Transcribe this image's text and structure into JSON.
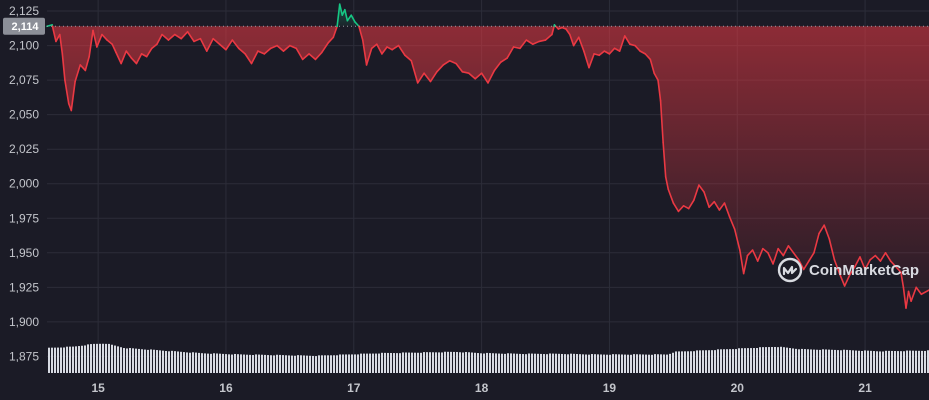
{
  "brand": {
    "watermark": "CoinMarketCap",
    "logo_icon": "coinmarketcap-logo-icon"
  },
  "colors": {
    "background": "#1b1b26",
    "up": "#16c784",
    "down": "#ea3943",
    "volume": "#d8dbe3",
    "grid": "#2c2d39",
    "price_tag_bg": "#8c8f98"
  },
  "chart_data": {
    "type": "line",
    "title": "",
    "xlabel": "",
    "ylabel": "",
    "ylim": [
      1863,
      2133
    ],
    "xlim": [
      14.6,
      21.5
    ],
    "y_ticks": [
      "1,875",
      "1,900",
      "1,925",
      "1,950",
      "1,975",
      "2,000",
      "2,025",
      "2,050",
      "2,075",
      "2,100",
      "2,125"
    ],
    "x_ticks": [
      "15",
      "16",
      "17",
      "18",
      "19",
      "20",
      "21"
    ],
    "grid": true,
    "reference_price": 2114,
    "current_price_label": "2,114",
    "series": [
      {
        "points": [
          [
            14.6,
            2114
          ],
          [
            14.64,
            2115
          ],
          [
            14.67,
            2103
          ],
          [
            14.7,
            2108
          ],
          [
            14.72,
            2094
          ],
          [
            14.74,
            2075
          ],
          [
            14.77,
            2058
          ],
          [
            14.79,
            2053
          ],
          [
            14.82,
            2074
          ],
          [
            14.86,
            2086
          ],
          [
            14.9,
            2082
          ],
          [
            14.93,
            2092
          ],
          [
            14.96,
            2111
          ],
          [
            14.99,
            2099
          ],
          [
            15.03,
            2108
          ],
          [
            15.07,
            2104
          ],
          [
            15.11,
            2101
          ],
          [
            15.14,
            2095
          ],
          [
            15.18,
            2087
          ],
          [
            15.22,
            2096
          ],
          [
            15.26,
            2091
          ],
          [
            15.3,
            2087
          ],
          [
            15.34,
            2094
          ],
          [
            15.38,
            2092
          ],
          [
            15.42,
            2098
          ],
          [
            15.46,
            2101
          ],
          [
            15.5,
            2108
          ],
          [
            15.55,
            2104
          ],
          [
            15.6,
            2108
          ],
          [
            15.65,
            2105
          ],
          [
            15.7,
            2110
          ],
          [
            15.75,
            2103
          ],
          [
            15.8,
            2105
          ],
          [
            15.85,
            2096
          ],
          [
            15.9,
            2105
          ],
          [
            15.95,
            2101
          ],
          [
            16.0,
            2097
          ],
          [
            16.05,
            2104
          ],
          [
            16.1,
            2098
          ],
          [
            16.15,
            2094
          ],
          [
            16.2,
            2087
          ],
          [
            16.25,
            2096
          ],
          [
            16.3,
            2094
          ],
          [
            16.35,
            2098
          ],
          [
            16.4,
            2100
          ],
          [
            16.45,
            2096
          ],
          [
            16.5,
            2100
          ],
          [
            16.55,
            2098
          ],
          [
            16.6,
            2090
          ],
          [
            16.65,
            2094
          ],
          [
            16.7,
            2090
          ],
          [
            16.75,
            2095
          ],
          [
            16.8,
            2102
          ],
          [
            16.84,
            2106
          ],
          [
            16.87,
            2114
          ],
          [
            16.89,
            2130
          ],
          [
            16.91,
            2122
          ],
          [
            16.93,
            2126
          ],
          [
            16.95,
            2118
          ],
          [
            16.98,
            2122
          ],
          [
            17.01,
            2117
          ],
          [
            17.04,
            2114
          ],
          [
            17.07,
            2104
          ],
          [
            17.1,
            2086
          ],
          [
            17.14,
            2098
          ],
          [
            17.18,
            2101
          ],
          [
            17.22,
            2094
          ],
          [
            17.26,
            2099
          ],
          [
            17.3,
            2097
          ],
          [
            17.35,
            2100
          ],
          [
            17.4,
            2093
          ],
          [
            17.45,
            2089
          ],
          [
            17.5,
            2073
          ],
          [
            17.55,
            2080
          ],
          [
            17.6,
            2074
          ],
          [
            17.65,
            2081
          ],
          [
            17.7,
            2086
          ],
          [
            17.75,
            2089
          ],
          [
            17.8,
            2087
          ],
          [
            17.85,
            2081
          ],
          [
            17.9,
            2080
          ],
          [
            17.95,
            2076
          ],
          [
            18.0,
            2080
          ],
          [
            18.05,
            2073
          ],
          [
            18.1,
            2082
          ],
          [
            18.15,
            2088
          ],
          [
            18.2,
            2091
          ],
          [
            18.25,
            2099
          ],
          [
            18.3,
            2098
          ],
          [
            18.35,
            2104
          ],
          [
            18.4,
            2101
          ],
          [
            18.45,
            2103
          ],
          [
            18.5,
            2104
          ],
          [
            18.55,
            2108
          ],
          [
            18.57,
            2115
          ],
          [
            18.6,
            2112
          ],
          [
            18.63,
            2113
          ],
          [
            18.66,
            2112
          ],
          [
            18.69,
            2108
          ],
          [
            18.72,
            2100
          ],
          [
            18.76,
            2106
          ],
          [
            18.8,
            2096
          ],
          [
            18.84,
            2084
          ],
          [
            18.88,
            2094
          ],
          [
            18.92,
            2093
          ],
          [
            18.96,
            2096
          ],
          [
            19.0,
            2094
          ],
          [
            19.04,
            2098
          ],
          [
            19.08,
            2096
          ],
          [
            19.12,
            2107
          ],
          [
            19.16,
            2101
          ],
          [
            19.2,
            2100
          ],
          [
            19.24,
            2096
          ],
          [
            19.28,
            2094
          ],
          [
            19.32,
            2090
          ],
          [
            19.35,
            2080
          ],
          [
            19.38,
            2075
          ],
          [
            19.4,
            2060
          ],
          [
            19.42,
            2030
          ],
          [
            19.44,
            2005
          ],
          [
            19.46,
            1996
          ],
          [
            19.5,
            1986
          ],
          [
            19.54,
            1980
          ],
          [
            19.58,
            1984
          ],
          [
            19.62,
            1982
          ],
          [
            19.66,
            1988
          ],
          [
            19.7,
            1999
          ],
          [
            19.74,
            1994
          ],
          [
            19.78,
            1983
          ],
          [
            19.82,
            1987
          ],
          [
            19.86,
            1981
          ],
          [
            19.9,
            1986
          ],
          [
            19.94,
            1976
          ],
          [
            19.98,
            1967
          ],
          [
            20.02,
            1952
          ],
          [
            20.05,
            1935
          ],
          [
            20.08,
            1948
          ],
          [
            20.12,
            1952
          ],
          [
            20.16,
            1944
          ],
          [
            20.2,
            1953
          ],
          [
            20.24,
            1950
          ],
          [
            20.28,
            1942
          ],
          [
            20.32,
            1953
          ],
          [
            20.36,
            1948
          ],
          [
            20.4,
            1955
          ],
          [
            20.44,
            1950
          ],
          [
            20.48,
            1945
          ],
          [
            20.52,
            1938
          ],
          [
            20.56,
            1944
          ],
          [
            20.6,
            1950
          ],
          [
            20.64,
            1964
          ],
          [
            20.68,
            1970
          ],
          [
            20.72,
            1960
          ],
          [
            20.76,
            1945
          ],
          [
            20.8,
            1935
          ],
          [
            20.84,
            1926
          ],
          [
            20.88,
            1934
          ],
          [
            20.92,
            1940
          ],
          [
            20.96,
            1947
          ],
          [
            21.0,
            1938
          ],
          [
            21.04,
            1945
          ],
          [
            21.08,
            1948
          ],
          [
            21.12,
            1944
          ],
          [
            21.16,
            1950
          ],
          [
            21.2,
            1944
          ],
          [
            21.24,
            1940
          ],
          [
            21.28,
            1936
          ],
          [
            21.3,
            1925
          ],
          [
            21.32,
            1910
          ],
          [
            21.34,
            1922
          ],
          [
            21.36,
            1915
          ],
          [
            21.4,
            1925
          ],
          [
            21.44,
            1920
          ],
          [
            21.5,
            1923
          ]
        ]
      }
    ],
    "volume": {
      "x_start": 14.6,
      "x_end": 21.5,
      "relative_levels": [
        [
          14.6,
          0.38
        ],
        [
          14.8,
          0.4
        ],
        [
          14.95,
          0.44
        ],
        [
          15.05,
          0.45
        ],
        [
          15.2,
          0.38
        ],
        [
          15.5,
          0.34
        ],
        [
          15.8,
          0.3
        ],
        [
          16.1,
          0.28
        ],
        [
          16.4,
          0.27
        ],
        [
          16.7,
          0.26
        ],
        [
          16.95,
          0.28
        ],
        [
          17.2,
          0.3
        ],
        [
          17.5,
          0.31
        ],
        [
          17.8,
          0.32
        ],
        [
          18.0,
          0.3
        ],
        [
          18.3,
          0.29
        ],
        [
          18.6,
          0.29
        ],
        [
          18.9,
          0.28
        ],
        [
          19.2,
          0.28
        ],
        [
          19.45,
          0.28
        ],
        [
          19.5,
          0.32
        ],
        [
          19.8,
          0.35
        ],
        [
          20.1,
          0.38
        ],
        [
          20.3,
          0.4
        ],
        [
          20.5,
          0.36
        ],
        [
          20.8,
          0.35
        ],
        [
          21.1,
          0.33
        ],
        [
          21.5,
          0.34
        ]
      ]
    }
  }
}
